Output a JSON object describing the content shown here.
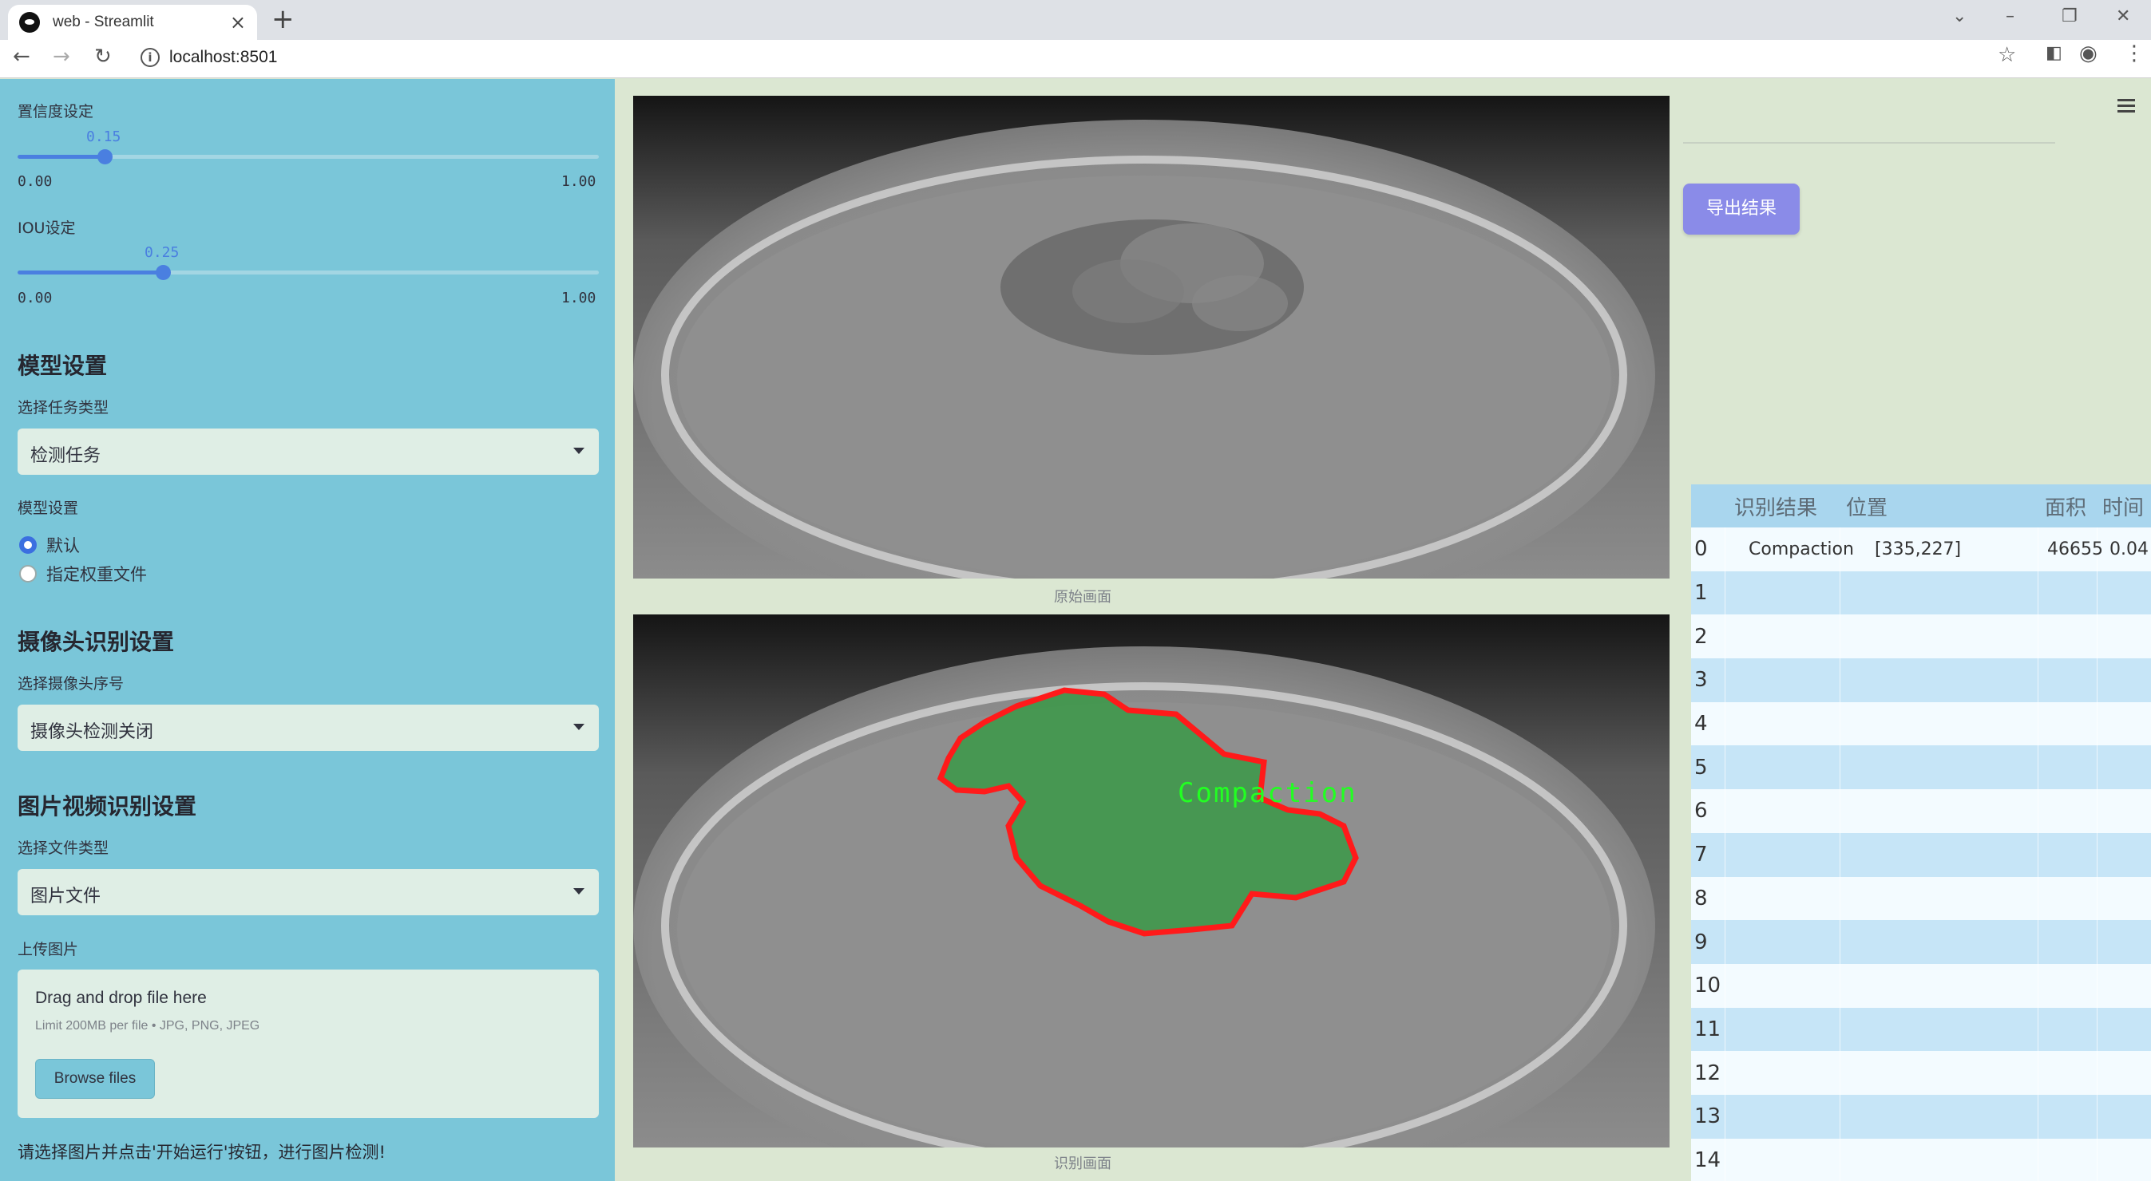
{
  "browser": {
    "tab_title": "web - Streamlit",
    "url": "localhost:8501"
  },
  "sidebar": {
    "conf": {
      "label": "置信度设定",
      "value": "0.15",
      "min": "0.00",
      "max": "1.00",
      "fraction": 0.15
    },
    "iou": {
      "label": "IOU设定",
      "value": "0.25",
      "min": "0.00",
      "max": "1.00",
      "fraction": 0.25
    },
    "model_heading": "模型设置",
    "task_label": "选择任务类型",
    "task_value": "检测任务",
    "model_label": "模型设置",
    "model_options": [
      "默认",
      "指定权重文件"
    ],
    "model_selected": "默认",
    "camera_heading": "摄像头识别设置",
    "camera_label": "选择摄像头序号",
    "camera_value": "摄像头检测关闭",
    "file_heading": "图片视频识别设置",
    "file_type_label": "选择文件类型",
    "file_type_value": "图片文件",
    "upload_label": "上传图片",
    "upload_title": "Drag and drop file here",
    "upload_limit": "Limit 200MB per file • JPG, PNG, JPEG",
    "browse_label": "Browse files",
    "hint": "请选择图片并点击'开始运行'按钮，进行图片检测!"
  },
  "main": {
    "original_caption": "原始画面",
    "result_caption": "识别画面",
    "detection_label": "Compaction",
    "colors": {
      "contour": "#ff1a1a",
      "mask": "#2f9a3e",
      "label": "#22ff22"
    }
  },
  "right": {
    "export_label": "导出结果",
    "table": {
      "headers": [
        "识别结果",
        "位置",
        "面积",
        "时间"
      ],
      "rows": [
        {
          "index": "0",
          "result": "Compaction",
          "position": "[335,227]",
          "area": "46655",
          "time": "0.04"
        },
        {
          "index": "1"
        },
        {
          "index": "2"
        },
        {
          "index": "3"
        },
        {
          "index": "4"
        },
        {
          "index": "5"
        },
        {
          "index": "6"
        },
        {
          "index": "7"
        },
        {
          "index": "8"
        },
        {
          "index": "9"
        },
        {
          "index": "10"
        },
        {
          "index": "11"
        },
        {
          "index": "12"
        },
        {
          "index": "13"
        },
        {
          "index": "14"
        }
      ]
    }
  }
}
